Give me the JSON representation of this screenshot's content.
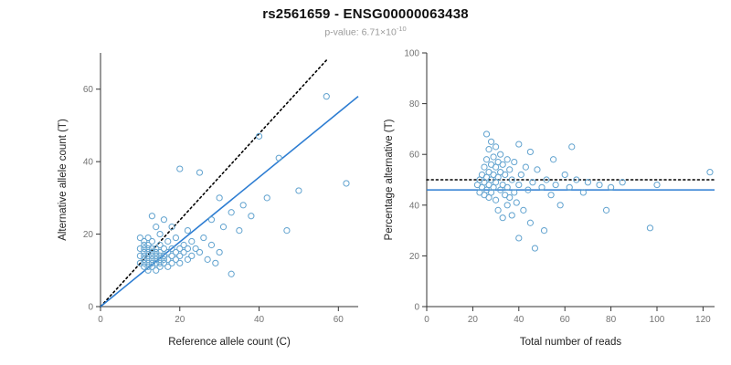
{
  "header": {
    "title": "rs2561659 - ENSG00000063438",
    "pvalue_prefix": "p-value: 6.71×10",
    "pvalue_exponent": "-10"
  },
  "colors": {
    "point": "#62a3cf",
    "fit_line": "#2d7dd2",
    "dotted_line": "#000000",
    "axis": "#333333",
    "tick_label": "#737373",
    "axis_label": "#222222"
  },
  "chart_data": [
    {
      "type": "scatter",
      "name": "allele-count-scatter",
      "xlabel": "Reference allele count (C)",
      "ylabel": "Alternative allele count (T)",
      "xlim": [
        0,
        65
      ],
      "ylim": [
        0,
        70
      ],
      "xticks": [
        0,
        20,
        40,
        60
      ],
      "yticks": [
        0,
        20,
        40,
        60
      ],
      "grid": false,
      "legend": "none",
      "points": [
        [
          10,
          12
        ],
        [
          10,
          14
        ],
        [
          10,
          16
        ],
        [
          10,
          19
        ],
        [
          11,
          11
        ],
        [
          11,
          12
        ],
        [
          11,
          13
        ],
        [
          11,
          14
        ],
        [
          11,
          15
        ],
        [
          11,
          16
        ],
        [
          11,
          17
        ],
        [
          11,
          18
        ],
        [
          12,
          10
        ],
        [
          12,
          11
        ],
        [
          12,
          12
        ],
        [
          12,
          13
        ],
        [
          12,
          14
        ],
        [
          12,
          15
        ],
        [
          12,
          16
        ],
        [
          12,
          17
        ],
        [
          12,
          19
        ],
        [
          13,
          11
        ],
        [
          13,
          12
        ],
        [
          13,
          13
        ],
        [
          13,
          14
        ],
        [
          13,
          15
        ],
        [
          13,
          16
        ],
        [
          13,
          18
        ],
        [
          13,
          25
        ],
        [
          14,
          10
        ],
        [
          14,
          12
        ],
        [
          14,
          13
        ],
        [
          14,
          14
        ],
        [
          14,
          15
        ],
        [
          14,
          16
        ],
        [
          14,
          22
        ],
        [
          15,
          11
        ],
        [
          15,
          12
        ],
        [
          15,
          13
        ],
        [
          15,
          14
        ],
        [
          15,
          15
        ],
        [
          15,
          17
        ],
        [
          15,
          20
        ],
        [
          16,
          12
        ],
        [
          16,
          13
        ],
        [
          16,
          14
        ],
        [
          16,
          16
        ],
        [
          16,
          24
        ],
        [
          17,
          11
        ],
        [
          17,
          13
        ],
        [
          17,
          15
        ],
        [
          17,
          18
        ],
        [
          18,
          12
        ],
        [
          18,
          14
        ],
        [
          18,
          16
        ],
        [
          18,
          22
        ],
        [
          19,
          13
        ],
        [
          19,
          15
        ],
        [
          19,
          19
        ],
        [
          20,
          12
        ],
        [
          20,
          14
        ],
        [
          20,
          16
        ],
        [
          20,
          38
        ],
        [
          21,
          15
        ],
        [
          21,
          17
        ],
        [
          22,
          13
        ],
        [
          22,
          16
        ],
        [
          22,
          21
        ],
        [
          23,
          14
        ],
        [
          23,
          18
        ],
        [
          24,
          16
        ],
        [
          25,
          15
        ],
        [
          25,
          37
        ],
        [
          26,
          19
        ],
        [
          27,
          13
        ],
        [
          28,
          17
        ],
        [
          28,
          24
        ],
        [
          29,
          12
        ],
        [
          30,
          15
        ],
        [
          30,
          30
        ],
        [
          31,
          22
        ],
        [
          33,
          9
        ],
        [
          33,
          26
        ],
        [
          35,
          21
        ],
        [
          36,
          28
        ],
        [
          38,
          25
        ],
        [
          40,
          47
        ],
        [
          42,
          30
        ],
        [
          45,
          41
        ],
        [
          47,
          21
        ],
        [
          50,
          32
        ],
        [
          57,
          58
        ],
        [
          62,
          34
        ]
      ],
      "lines": [
        {
          "name": "expected-1to1-line",
          "style": "dotted",
          "color": "#000000",
          "from": [
            0,
            0
          ],
          "to": [
            57,
            68
          ]
        },
        {
          "name": "fitted-regression-line",
          "style": "solid",
          "color": "#2d7dd2",
          "from": [
            0,
            0
          ],
          "to": [
            65,
            58
          ]
        }
      ]
    },
    {
      "type": "scatter",
      "name": "percentage-alternative-scatter",
      "xlabel": "Total number of reads",
      "ylabel": "Percentage alternative (T)",
      "xlim": [
        0,
        125
      ],
      "ylim": [
        0,
        100
      ],
      "xticks": [
        0,
        20,
        40,
        60,
        80,
        100,
        120
      ],
      "yticks": [
        0,
        20,
        40,
        60,
        80,
        100
      ],
      "grid": false,
      "legend": "none",
      "points": [
        [
          22,
          48
        ],
        [
          23,
          50
        ],
        [
          23,
          45
        ],
        [
          24,
          52
        ],
        [
          24,
          47
        ],
        [
          25,
          55
        ],
        [
          25,
          49
        ],
        [
          25,
          44
        ],
        [
          26,
          68
        ],
        [
          26,
          58
        ],
        [
          26,
          51
        ],
        [
          26,
          46
        ],
        [
          27,
          62
        ],
        [
          27,
          53
        ],
        [
          27,
          48
        ],
        [
          27,
          43
        ],
        [
          28,
          65
        ],
        [
          28,
          56
        ],
        [
          28,
          50
        ],
        [
          28,
          45
        ],
        [
          29,
          59
        ],
        [
          29,
          52
        ],
        [
          29,
          47
        ],
        [
          30,
          63
        ],
        [
          30,
          55
        ],
        [
          30,
          49
        ],
        [
          30,
          42
        ],
        [
          31,
          57
        ],
        [
          31,
          51
        ],
        [
          31,
          38
        ],
        [
          32,
          60
        ],
        [
          32,
          53
        ],
        [
          32,
          46
        ],
        [
          33,
          56
        ],
        [
          33,
          48
        ],
        [
          33,
          35
        ],
        [
          34,
          52
        ],
        [
          34,
          44
        ],
        [
          35,
          58
        ],
        [
          35,
          47
        ],
        [
          35,
          40
        ],
        [
          36,
          54
        ],
        [
          36,
          43
        ],
        [
          37,
          50
        ],
        [
          37,
          36
        ],
        [
          38,
          57
        ],
        [
          38,
          45
        ],
        [
          39,
          41
        ],
        [
          40,
          64
        ],
        [
          40,
          48
        ],
        [
          40,
          27
        ],
        [
          41,
          52
        ],
        [
          42,
          38
        ],
        [
          43,
          55
        ],
        [
          44,
          46
        ],
        [
          45,
          61
        ],
        [
          45,
          33
        ],
        [
          46,
          49
        ],
        [
          47,
          23
        ],
        [
          48,
          54
        ],
        [
          50,
          47
        ],
        [
          51,
          30
        ],
        [
          52,
          50
        ],
        [
          54,
          44
        ],
        [
          55,
          58
        ],
        [
          56,
          48
        ],
        [
          58,
          40
        ],
        [
          60,
          52
        ],
        [
          62,
          47
        ],
        [
          63,
          63
        ],
        [
          65,
          50
        ],
        [
          68,
          45
        ],
        [
          70,
          49
        ],
        [
          75,
          48
        ],
        [
          78,
          38
        ],
        [
          80,
          47
        ],
        [
          85,
          49
        ],
        [
          97,
          31
        ],
        [
          100,
          48
        ],
        [
          123,
          53
        ]
      ],
      "lines": [
        {
          "name": "expected-50pct-line",
          "style": "dotted",
          "color": "#000000",
          "from": [
            0,
            50
          ],
          "to": [
            125,
            50
          ]
        },
        {
          "name": "fitted-mean-line",
          "style": "solid",
          "color": "#2d7dd2",
          "from": [
            0,
            46
          ],
          "to": [
            125,
            46
          ]
        }
      ]
    }
  ]
}
